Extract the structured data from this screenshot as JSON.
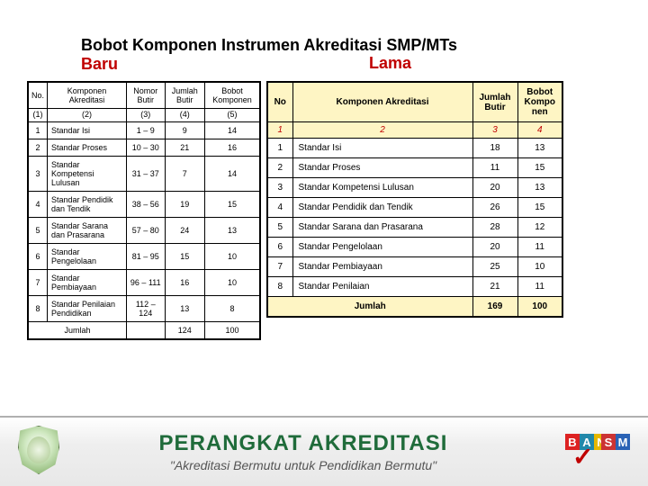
{
  "title": {
    "line1": "Bobot Komponen Instrumen Akreditasi SMP/MTs",
    "lama": "Lama",
    "baru": "Baru"
  },
  "left_table": {
    "headers": [
      "No.",
      "Komponen Akreditasi",
      "Nomor Butir",
      "Jumlah Butir",
      "Bobot Komponen"
    ],
    "index_row": [
      "(1)",
      "(2)",
      "(3)",
      "(4)",
      "(5)"
    ],
    "rows": [
      {
        "no": "1",
        "comp": "Standar Isi",
        "range": "1 – 9",
        "count": "9",
        "weight": "14"
      },
      {
        "no": "2",
        "comp": "Standar Proses",
        "range": "10 – 30",
        "count": "21",
        "weight": "16"
      },
      {
        "no": "3",
        "comp": "Standar Kompetensi Lulusan",
        "range": "31 – 37",
        "count": "7",
        "weight": "14"
      },
      {
        "no": "4",
        "comp": "Standar Pendidik dan Tendik",
        "range": "38 – 56",
        "count": "19",
        "weight": "15"
      },
      {
        "no": "5",
        "comp": "Standar Sarana dan Prasarana",
        "range": "57 – 80",
        "count": "24",
        "weight": "13"
      },
      {
        "no": "6",
        "comp": "Standar Pengelolaan",
        "range": "81 – 95",
        "count": "15",
        "weight": "10"
      },
      {
        "no": "7",
        "comp": "Standar Pembiayaan",
        "range": "96 – 111",
        "count": "16",
        "weight": "10"
      },
      {
        "no": "8",
        "comp": "Standar Penilaian Pendidikan",
        "range": "112 – 124",
        "count": "13",
        "weight": "8"
      }
    ],
    "footer": {
      "label": "Jumlah",
      "count": "124",
      "weight": "100"
    }
  },
  "right_table": {
    "headers": [
      "No",
      "Komponen Akreditasi",
      "Jumlah Butir",
      "Bobot Kompo nen"
    ],
    "index_row": [
      "1",
      "2",
      "3",
      "4"
    ],
    "rows": [
      {
        "no": "1",
        "comp": "Standar Isi",
        "count": "18",
        "weight": "13"
      },
      {
        "no": "2",
        "comp": "Standar Proses",
        "count": "11",
        "weight": "15"
      },
      {
        "no": "3",
        "comp": "Standar Kompetensi Lulusan",
        "count": "20",
        "weight": "13"
      },
      {
        "no": "4",
        "comp": "Standar Pendidik dan Tendik",
        "count": "26",
        "weight": "15"
      },
      {
        "no": "5",
        "comp": "Standar Sarana dan Prasarana",
        "count": "28",
        "weight": "12"
      },
      {
        "no": "6",
        "comp": "Standar Pengelolaan",
        "count": "20",
        "weight": "11"
      },
      {
        "no": "7",
        "comp": "Standar Pembiayaan",
        "count": "25",
        "weight": "10"
      },
      {
        "no": "8",
        "comp": "Standar Penilaian",
        "count": "21",
        "weight": "11"
      }
    ],
    "footer": {
      "label": "Jumlah",
      "count": "169",
      "weight": "100"
    }
  },
  "footer": {
    "title": "PERANGKAT  AKREDITASI",
    "subtitle": "\"Akreditasi Bermutu untuk Pendidikan Bermutu\"",
    "ban": {
      "b": "B",
      "a": "A",
      "n": "N",
      "s": "S",
      "m": "M"
    }
  }
}
